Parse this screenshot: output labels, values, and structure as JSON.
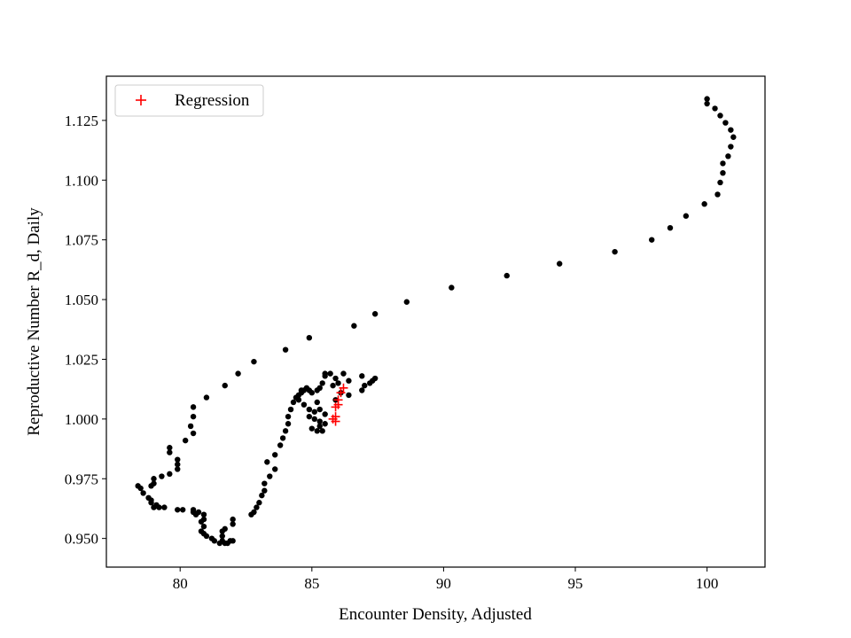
{
  "chart_data": {
    "type": "scatter",
    "title": "",
    "xlabel": "Encounter Density, Adjusted",
    "ylabel": "Reproductive Number R_d, Daily",
    "xlim": [
      77.2,
      102.2
    ],
    "ylim": [
      0.938,
      1.1435
    ],
    "xticks": [
      80,
      85,
      90,
      95,
      100
    ],
    "yticks": [
      0.95,
      0.975,
      1.0,
      1.025,
      1.05,
      1.075,
      1.1,
      1.125
    ],
    "xtick_labels": [
      "80",
      "85",
      "90",
      "95",
      "100"
    ],
    "ytick_labels": [
      "0.950",
      "0.975",
      "1.000",
      "1.025",
      "1.050",
      "1.075",
      "1.100",
      "1.125"
    ],
    "grid": false,
    "legend": {
      "location": "upper left",
      "entries": [
        "Regression"
      ]
    },
    "series": [
      {
        "marker": "dot",
        "color": "#000000",
        "points": [
          [
            100.0,
            1.134
          ],
          [
            100.0,
            1.132
          ],
          [
            100.3,
            1.13
          ],
          [
            100.5,
            1.127
          ],
          [
            100.7,
            1.124
          ],
          [
            100.9,
            1.121
          ],
          [
            101.0,
            1.118
          ],
          [
            100.9,
            1.114
          ],
          [
            100.8,
            1.11
          ],
          [
            100.6,
            1.107
          ],
          [
            100.6,
            1.103
          ],
          [
            100.5,
            1.099
          ],
          [
            100.4,
            1.094
          ],
          [
            99.9,
            1.09
          ],
          [
            99.2,
            1.085
          ],
          [
            98.6,
            1.08
          ],
          [
            97.9,
            1.075
          ],
          [
            96.5,
            1.07
          ],
          [
            94.4,
            1.065
          ],
          [
            92.4,
            1.06
          ],
          [
            90.3,
            1.055
          ],
          [
            88.6,
            1.049
          ],
          [
            87.4,
            1.044
          ],
          [
            86.6,
            1.039
          ],
          [
            84.9,
            1.034
          ],
          [
            84.0,
            1.029
          ],
          [
            82.8,
            1.024
          ],
          [
            82.2,
            1.019
          ],
          [
            81.7,
            1.014
          ],
          [
            81.0,
            1.009
          ],
          [
            80.5,
            1.005
          ],
          [
            80.5,
            1.001
          ],
          [
            80.4,
            0.997
          ],
          [
            80.5,
            0.994
          ],
          [
            80.2,
            0.991
          ],
          [
            79.6,
            0.988
          ],
          [
            79.6,
            0.986
          ],
          [
            79.9,
            0.983
          ],
          [
            79.9,
            0.981
          ],
          [
            79.9,
            0.979
          ],
          [
            79.6,
            0.977
          ],
          [
            79.3,
            0.976
          ],
          [
            79.0,
            0.975
          ],
          [
            79.0,
            0.973
          ],
          [
            78.9,
            0.972
          ],
          [
            78.4,
            0.972
          ],
          [
            78.5,
            0.971
          ],
          [
            78.6,
            0.969
          ],
          [
            78.8,
            0.967
          ],
          [
            78.9,
            0.966
          ],
          [
            78.9,
            0.965
          ],
          [
            79.1,
            0.964
          ],
          [
            79.0,
            0.963
          ],
          [
            79.2,
            0.963
          ],
          [
            79.4,
            0.963
          ],
          [
            79.9,
            0.962
          ],
          [
            80.1,
            0.962
          ],
          [
            80.5,
            0.962
          ],
          [
            80.7,
            0.961
          ],
          [
            80.5,
            0.961
          ],
          [
            80.6,
            0.96
          ],
          [
            80.9,
            0.96
          ],
          [
            80.9,
            0.958
          ],
          [
            80.8,
            0.957
          ],
          [
            80.9,
            0.955
          ],
          [
            80.8,
            0.953
          ],
          [
            80.9,
            0.952
          ],
          [
            81.0,
            0.951
          ],
          [
            81.2,
            0.95
          ],
          [
            81.3,
            0.949
          ],
          [
            81.6,
            0.949
          ],
          [
            81.5,
            0.948
          ],
          [
            81.7,
            0.948
          ],
          [
            81.8,
            0.948
          ],
          [
            81.9,
            0.949
          ],
          [
            81.6,
            0.951
          ],
          [
            81.6,
            0.953
          ],
          [
            81.7,
            0.954
          ],
          [
            82.0,
            0.949
          ],
          [
            82.0,
            0.956
          ],
          [
            82.0,
            0.958
          ],
          [
            82.7,
            0.96
          ],
          [
            82.8,
            0.961
          ],
          [
            82.9,
            0.963
          ],
          [
            83.0,
            0.965
          ],
          [
            83.1,
            0.968
          ],
          [
            83.2,
            0.97
          ],
          [
            83.2,
            0.973
          ],
          [
            83.4,
            0.976
          ],
          [
            83.6,
            0.979
          ],
          [
            83.3,
            0.982
          ],
          [
            83.6,
            0.985
          ],
          [
            83.8,
            0.989
          ],
          [
            83.9,
            0.992
          ],
          [
            84.0,
            0.995
          ],
          [
            84.1,
            0.998
          ],
          [
            84.1,
            1.001
          ],
          [
            84.2,
            1.004
          ],
          [
            84.3,
            1.007
          ],
          [
            84.4,
            1.009
          ],
          [
            84.5,
            1.01
          ],
          [
            84.6,
            1.012
          ],
          [
            84.7,
            1.012
          ],
          [
            84.9,
            1.012
          ],
          [
            85.0,
            1.011
          ],
          [
            85.2,
            1.012
          ],
          [
            85.3,
            1.013
          ],
          [
            84.8,
            1.013
          ],
          [
            84.6,
            1.011
          ],
          [
            84.5,
            1.008
          ],
          [
            84.7,
            1.006
          ],
          [
            84.9,
            1.004
          ],
          [
            85.1,
            1.003
          ],
          [
            84.9,
            1.001
          ],
          [
            85.1,
            1.0
          ],
          [
            85.3,
            0.999
          ],
          [
            85.3,
            0.997
          ],
          [
            85.0,
            0.996
          ],
          [
            85.2,
            0.995
          ],
          [
            85.4,
            0.995
          ],
          [
            85.5,
            0.998
          ],
          [
            85.5,
            1.002
          ],
          [
            85.3,
            1.004
          ],
          [
            85.2,
            1.007
          ],
          [
            85.4,
            1.015
          ],
          [
            85.5,
            1.018
          ],
          [
            85.5,
            1.019
          ],
          [
            85.7,
            1.019
          ],
          [
            85.9,
            1.017
          ],
          [
            86.0,
            1.015
          ],
          [
            86.2,
            1.019
          ],
          [
            86.4,
            1.016
          ],
          [
            85.8,
            1.014
          ],
          [
            86.4,
            1.01
          ],
          [
            86.1,
            1.011
          ],
          [
            86.9,
            1.018
          ],
          [
            86.9,
            1.012
          ],
          [
            87.0,
            1.014
          ],
          [
            87.2,
            1.015
          ],
          [
            87.3,
            1.016
          ],
          [
            87.4,
            1.017
          ],
          [
            85.9,
            1.008
          ]
        ]
      },
      {
        "name": "Regression",
        "marker": "plus",
        "color": "#ff0000",
        "points": [
          [
            85.8,
            1.0
          ],
          [
            85.9,
            0.999
          ],
          [
            85.9,
            1.001
          ],
          [
            85.9,
            1.005
          ],
          [
            86.0,
            1.006
          ],
          [
            86.0,
            1.008
          ],
          [
            86.1,
            1.011
          ],
          [
            86.2,
            1.013
          ]
        ]
      }
    ]
  }
}
